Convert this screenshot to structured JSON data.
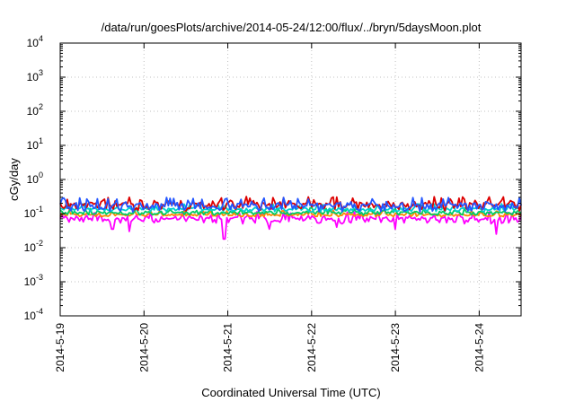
{
  "chart_data": {
    "type": "line",
    "title": "/data/run/goesPlots/archive/2014-05-24/12:00/flux/../bryn/5daysMoon.plot",
    "xlabel": "Coordinated Universal Time (UTC)",
    "ylabel": "cGy/day",
    "yscale": "log",
    "ylim": [
      0.0001,
      10000
    ],
    "y_ticks": [
      {
        "base": "10",
        "exp": "-4",
        "value": 0.0001
      },
      {
        "base": "10",
        "exp": "-3",
        "value": 0.001
      },
      {
        "base": "10",
        "exp": "-2",
        "value": 0.01
      },
      {
        "base": "10",
        "exp": "-1",
        "value": 0.1
      },
      {
        "base": "10",
        "exp": "0",
        "value": 1
      },
      {
        "base": "10",
        "exp": "1",
        "value": 10
      },
      {
        "base": "10",
        "exp": "2",
        "value": 100
      },
      {
        "base": "10",
        "exp": "3",
        "value": 1000
      },
      {
        "base": "10",
        "exp": "4",
        "value": 10000
      }
    ],
    "xlim": [
      "2014-05-19 00:00",
      "2014-05-24 12:00"
    ],
    "x_ticks": [
      "2014-5-19",
      "2014-5-20",
      "2014-5-21",
      "2014-5-22",
      "2014-5-23",
      "2014-5-24"
    ],
    "grid": true,
    "series": [
      {
        "color": "#ff00ff",
        "base": 0.075,
        "lo": 0.05,
        "hi": 0.1,
        "dips": [
          [
            "2014-05-19 15:00",
            0.035
          ],
          [
            "2014-05-19 20:00",
            0.03
          ],
          [
            "2014-05-20 23:00",
            0.018
          ],
          [
            "2014-05-21 12:00",
            0.035
          ],
          [
            "2014-05-22 07:00",
            0.04
          ],
          [
            "2014-05-23 00:00",
            0.035
          ],
          [
            "2014-05-24 05:00",
            0.025
          ]
        ]
      },
      {
        "color": "#ff8800",
        "base": 0.09,
        "lo": 0.08,
        "hi": 0.11,
        "dips": []
      },
      {
        "color": "#00cc66",
        "base": 0.11,
        "lo": 0.09,
        "hi": 0.13,
        "dips": []
      },
      {
        "color": "#00d0d0",
        "base": 0.13,
        "lo": 0.11,
        "hi": 0.17,
        "dips": []
      },
      {
        "color": "#dd0000",
        "base": 0.17,
        "lo": 0.12,
        "hi": 0.28,
        "dips": []
      },
      {
        "color": "#2255ff",
        "base": 0.16,
        "lo": 0.11,
        "hi": 0.26,
        "dips": []
      }
    ]
  }
}
